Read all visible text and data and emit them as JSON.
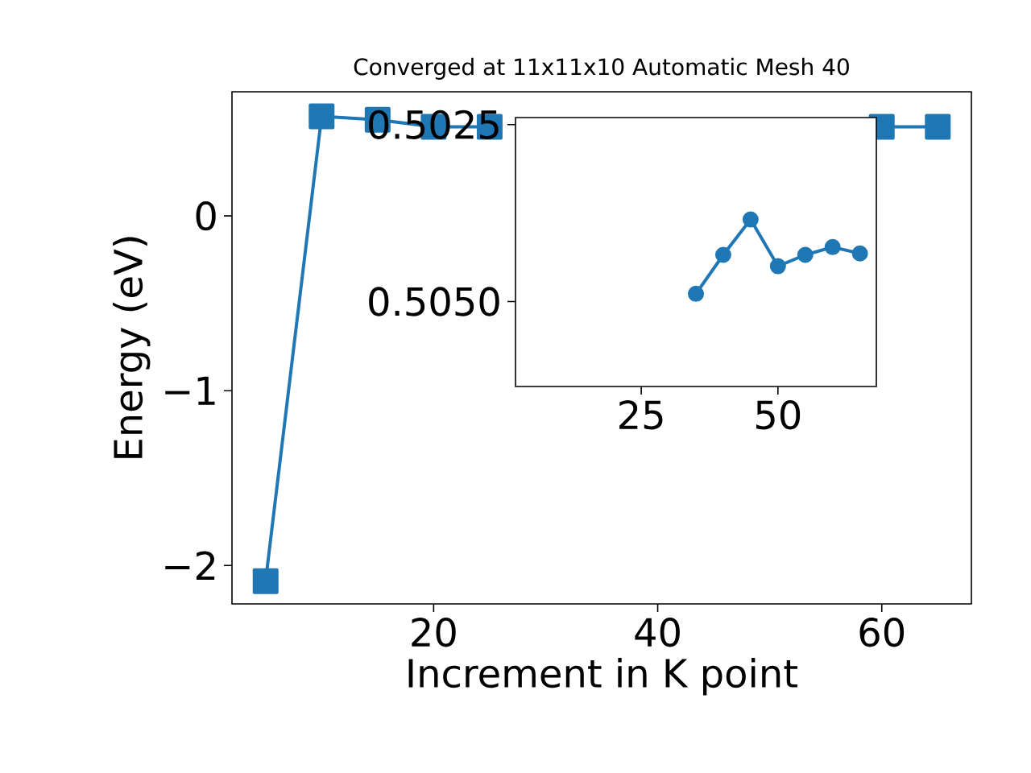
{
  "chart_data": [
    {
      "type": "line",
      "title": "Converged at 11x11x10 Automatic Mesh 40",
      "xlabel": "Increment in K point",
      "ylabel": "Energy (eV)",
      "x": [
        5,
        10,
        15,
        20,
        25,
        30,
        35,
        40,
        45,
        50,
        55,
        60,
        65
      ],
      "series": [
        {
          "color": "#1f77b4",
          "values": [
            -2.09,
            0.57,
            0.55,
            0.51,
            0.51,
            null,
            null,
            null,
            null,
            null,
            null,
            0.51,
            0.51
          ]
        }
      ],
      "xlim": [
        2,
        68
      ],
      "ylim": [
        -2.22,
        0.71
      ],
      "xticks": [
        20,
        40,
        60
      ],
      "yticks": [
        {
          "value": -2,
          "label": "−2"
        },
        {
          "value": -1,
          "label": "−1"
        },
        0
      ],
      "marker": "square",
      "grid": false
    },
    {
      "type": "line",
      "x": [
        35,
        40,
        45,
        50,
        55,
        60,
        65
      ],
      "series": [
        {
          "color": "#1f77b4",
          "values": [
            0.50489,
            0.50434,
            0.50384,
            0.5045,
            0.50434,
            0.50423,
            0.50432
          ]
        }
      ],
      "xlim": [
        2,
        68
      ],
      "ylim": [
        0.5062,
        0.5024
      ],
      "xticks": [
        25,
        50
      ],
      "yticks": [
        0.5025,
        {
          "value": 0.505,
          "label": "0.5050"
        }
      ],
      "marker": "circle",
      "grid": false
    }
  ]
}
